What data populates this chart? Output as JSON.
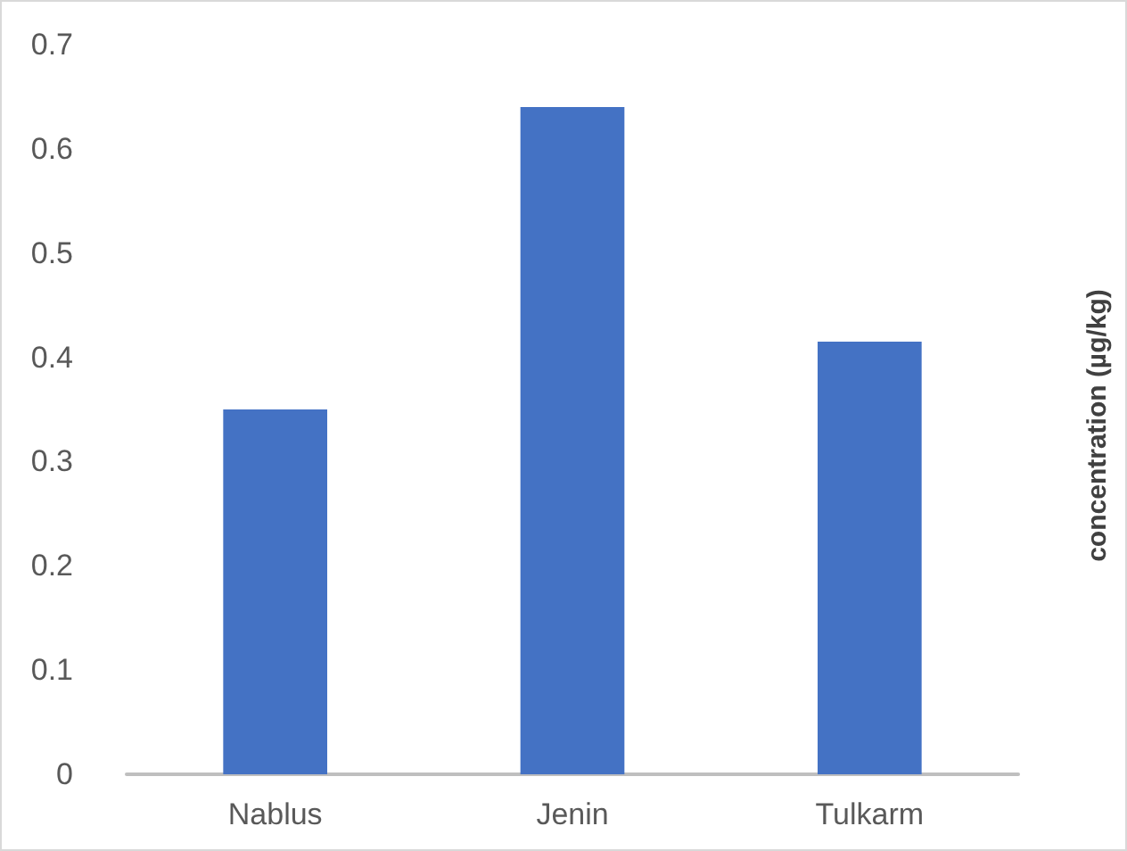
{
  "chart_data": {
    "type": "bar",
    "ylabel": "concentration (µg/kg)",
    "categories": [
      "Nablus",
      "Jenin",
      "Tulkarm"
    ],
    "values": [
      0.35,
      0.64,
      0.415
    ],
    "color": "#4472c4",
    "ylim": [
      0,
      0.7
    ],
    "yticks": [
      0,
      0.1,
      0.2,
      0.3,
      0.4,
      0.5,
      0.6,
      0.7
    ],
    "grid": false
  }
}
